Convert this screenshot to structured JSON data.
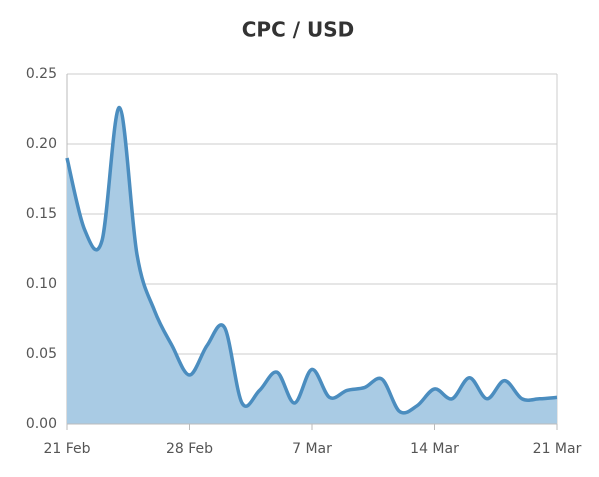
{
  "chart_data": {
    "type": "area",
    "title": "CPC / USD",
    "categories": [
      "21 Feb",
      null,
      null,
      null,
      null,
      null,
      null,
      "28 Feb",
      null,
      null,
      null,
      null,
      null,
      null,
      "7 Mar",
      null,
      null,
      null,
      null,
      null,
      null,
      "14 Mar",
      null,
      null,
      null,
      null,
      null,
      null,
      "21 Mar"
    ],
    "values": [
      0.19,
      0.139,
      0.131,
      0.226,
      0.121,
      0.081,
      0.056,
      0.035,
      0.056,
      0.069,
      0.015,
      0.024,
      0.037,
      0.015,
      0.039,
      0.019,
      0.024,
      0.026,
      0.032,
      0.009,
      0.013,
      0.025,
      0.018,
      0.033,
      0.018,
      0.031,
      0.018,
      0.018,
      0.019
    ],
    "color": "#4b8dbf",
    "fill_color": "#a9cbe4",
    "ylim": [
      0,
      0.25
    ],
    "yticks": [
      {
        "value": 0,
        "label": "0.00"
      },
      0.05,
      {
        "value": 0.1,
        "label": "0.10"
      },
      0.15,
      {
        "value": 0.2,
        "label": "0.20"
      },
      0.25
    ],
    "grid": true
  }
}
